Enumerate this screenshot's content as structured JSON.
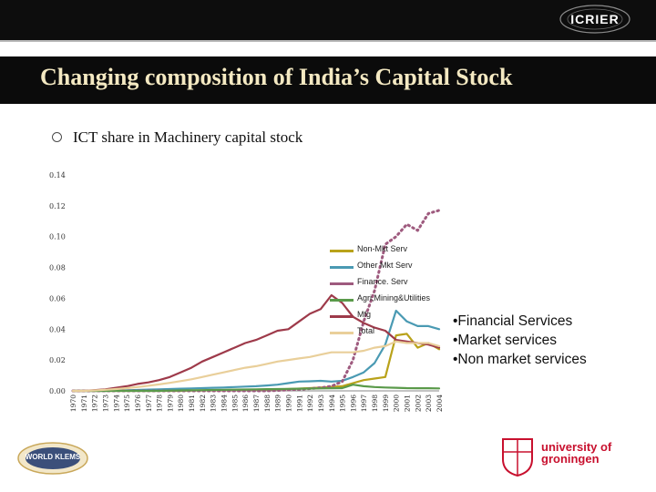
{
  "header": {
    "logo_text": "ICRIER",
    "title": "Changing composition of India’s Capital Stock",
    "subtitle": "ICT share in Machinery capital stock"
  },
  "notes": [
    "•Financial Services",
    "•Market services",
    "•Non market services"
  ],
  "footer": {
    "left_logo_text": "WORLD KLEMS",
    "right_logo_line1": "university of",
    "right_logo_line2": "groningen"
  },
  "colors": {
    "background": "#ffffff",
    "title_bar": "#0b0b0b",
    "title_text": "#f4e9c2",
    "non_mkt": "#b9a21a",
    "other_mkt": "#4a9ab3",
    "finance": "#9e5a7e",
    "agri": "#5a9a4a",
    "mfg": "#9e3a4a",
    "total": "#e9cf9a"
  },
  "chart_data": {
    "type": "line",
    "title": "ICT share in Machinery capital stock",
    "xlabel": "",
    "ylabel": "",
    "ylim": [
      0,
      0.14
    ],
    "yticks": [
      "0.00",
      "0.02",
      "0.04",
      "0.06",
      "0.08",
      "0.10",
      "0.12",
      "0.14"
    ],
    "x": [
      "1970",
      "1971",
      "1972",
      "1973",
      "1974",
      "1975",
      "1976",
      "1977",
      "1978",
      "1979",
      "1980",
      "1981",
      "1982",
      "1983",
      "1984",
      "1985",
      "1986",
      "1987",
      "1988",
      "1989",
      "1990",
      "1991",
      "1992",
      "1993",
      "1994",
      "1995",
      "1996",
      "1997",
      "1998",
      "1999",
      "2000",
      "2001",
      "2002",
      "2003",
      "2004"
    ],
    "legend_position": "right",
    "series": [
      {
        "name": "Non-Mkt Serv",
        "color_key": "non_mkt",
        "style": "solid",
        "values": [
          0,
          0,
          0,
          0,
          0,
          0,
          0,
          0,
          0,
          0,
          0,
          0.0002,
          0.0003,
          0.0004,
          0.0005,
          0.0006,
          0.0007,
          0.0008,
          0.0009,
          0.001,
          0.0012,
          0.0015,
          0.0018,
          0.0022,
          0.0026,
          0.003,
          0.005,
          0.007,
          0.008,
          0.009,
          0.036,
          0.037,
          0.028,
          0.031,
          0.027
        ]
      },
      {
        "name": "Other Mkt Serv",
        "color_key": "other_mkt",
        "style": "solid",
        "values": [
          0,
          0,
          0,
          0,
          0.0002,
          0.0004,
          0.0006,
          0.0008,
          0.001,
          0.0012,
          0.0014,
          0.0016,
          0.0018,
          0.002,
          0.0022,
          0.0025,
          0.0028,
          0.003,
          0.0035,
          0.004,
          0.005,
          0.006,
          0.0062,
          0.0065,
          0.006,
          0.0065,
          0.009,
          0.012,
          0.018,
          0.03,
          0.052,
          0.045,
          0.042,
          0.042,
          0.04
        ]
      },
      {
        "name": "Finance. Serv",
        "color_key": "finance",
        "style": "dotted",
        "values": [
          0,
          0,
          0,
          0,
          0,
          0,
          0,
          0,
          0,
          0,
          0,
          0,
          0,
          0,
          0,
          0,
          0,
          0,
          0,
          0.0003,
          0.0006,
          0.001,
          0.0015,
          0.002,
          0.003,
          0.006,
          0.02,
          0.045,
          0.065,
          0.095,
          0.1,
          0.108,
          0.104,
          0.115,
          0.117
        ]
      },
      {
        "name": "Agri,Mining&Utilities",
        "color_key": "agri",
        "style": "solid",
        "values": [
          0,
          0,
          0,
          0,
          0,
          0,
          0,
          0,
          0,
          0.0002,
          0.0003,
          0.0004,
          0.0005,
          0.0006,
          0.0007,
          0.0008,
          0.0009,
          0.001,
          0.0011,
          0.0012,
          0.0013,
          0.0014,
          0.0015,
          0.0016,
          0.0017,
          0.0018,
          0.004,
          0.003,
          0.0025,
          0.0022,
          0.002,
          0.0018,
          0.0017,
          0.0017,
          0.0016
        ]
      },
      {
        "name": "Mfg",
        "color_key": "mfg",
        "style": "solid",
        "values": [
          0,
          0,
          0.0005,
          0.001,
          0.002,
          0.003,
          0.0045,
          0.0055,
          0.007,
          0.009,
          0.012,
          0.015,
          0.019,
          0.022,
          0.025,
          0.028,
          0.031,
          0.033,
          0.036,
          0.039,
          0.04,
          0.045,
          0.05,
          0.053,
          0.062,
          0.057,
          0.048,
          0.044,
          0.041,
          0.039,
          0.033,
          0.032,
          0.031,
          0.03,
          0.028
        ]
      },
      {
        "name": "Total",
        "color_key": "total",
        "style": "solid",
        "values": [
          0,
          0,
          0.0003,
          0.0007,
          0.0012,
          0.0018,
          0.0025,
          0.0033,
          0.0042,
          0.0052,
          0.0063,
          0.0075,
          0.009,
          0.0105,
          0.012,
          0.0135,
          0.015,
          0.016,
          0.0175,
          0.019,
          0.02,
          0.021,
          0.022,
          0.0235,
          0.025,
          0.025,
          0.025,
          0.026,
          0.028,
          0.029,
          0.032,
          0.031,
          0.031,
          0.031,
          0.029
        ]
      }
    ]
  }
}
